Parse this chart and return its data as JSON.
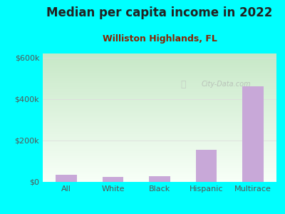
{
  "title": "Median per capita income in 2022",
  "subtitle": "Williston Highlands, FL",
  "categories": [
    "All",
    "White",
    "Black",
    "Hispanic",
    "Multirace"
  ],
  "values": [
    35000,
    25000,
    28000,
    155000,
    460000
  ],
  "bar_color": "#c8a8d8",
  "background_outer": "#00FFFF",
  "background_inner_top": "#c8e8c8",
  "background_inner_bottom": "#f2fbf2",
  "title_color": "#222222",
  "subtitle_color": "#8B2200",
  "tick_color": "#555555",
  "grid_color": "#dddddd",
  "ylim": [
    0,
    620000
  ],
  "yticks": [
    0,
    200000,
    400000,
    600000
  ],
  "ytick_labels": [
    "$0",
    "$200k",
    "$400k",
    "$600k"
  ],
  "watermark": "City-Data.com",
  "title_fontsize": 12,
  "subtitle_fontsize": 9,
  "tick_fontsize": 8
}
